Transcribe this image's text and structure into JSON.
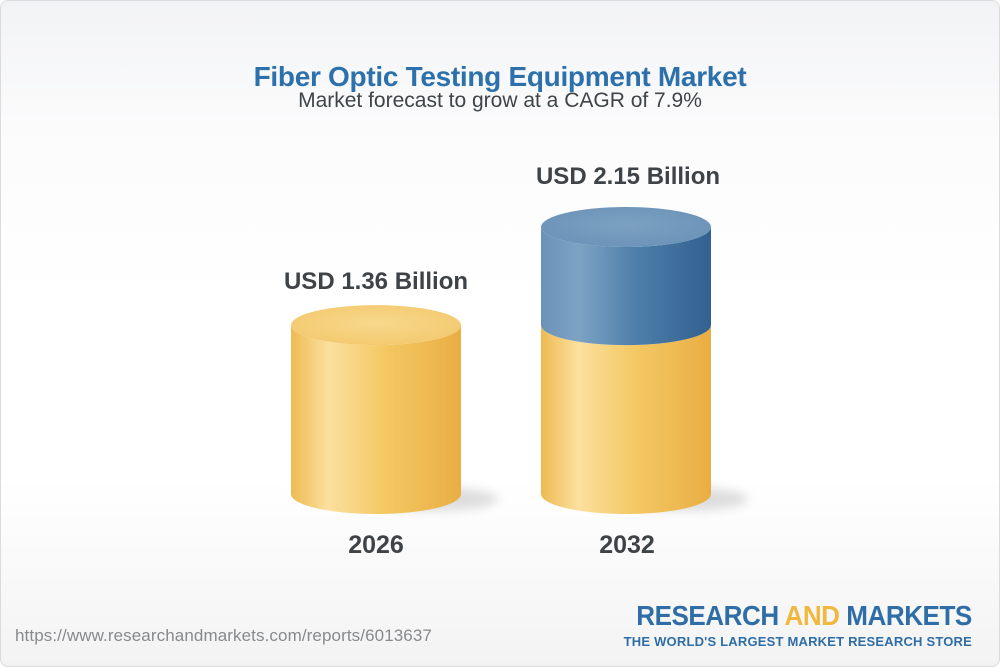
{
  "header": {
    "title": "Fiber Optic Testing Equipment Market",
    "subtitle": "Market forecast to grow at a CAGR of 7.9%"
  },
  "chart_data": {
    "type": "bar",
    "subtype": "3d-cylinder",
    "title": "Fiber Optic Testing Equipment Market",
    "subtitle": "Market forecast to grow at a CAGR of 7.9%",
    "unit": "USD Billion",
    "cagr_percent": 7.9,
    "categories": [
      "2026",
      "2032"
    ],
    "values": [
      1.36,
      2.15
    ],
    "value_labels": [
      "USD 1.36 Billion",
      "USD 2.15 Billion"
    ],
    "ylim": [
      0,
      2.15
    ],
    "grid": false,
    "legend": "none",
    "bars": [
      {
        "category": "2026",
        "total": 1.36,
        "label": "USD 1.36 Billion",
        "segments": [
          {
            "color": "gold",
            "value": 1.36
          }
        ]
      },
      {
        "category": "2032",
        "total": 2.15,
        "label": "USD 2.15 Billion",
        "segments": [
          {
            "color": "gold",
            "value": 1.36
          },
          {
            "color": "blue",
            "value": 0.79
          }
        ]
      }
    ],
    "colors": {
      "gold": "#f2c45f",
      "blue": "#4e7da9",
      "title_blue": "#2c70ac",
      "label_gray": "#3e4347"
    }
  },
  "footer": {
    "url": "https://www.researchandmarkets.com/reports/6013637",
    "logo": {
      "word1": "RESEARCH",
      "word2": "AND",
      "word3": "MARKETS",
      "tagline": "THE WORLD'S LARGEST MARKET RESEARCH STORE",
      "blue": "#2e6da5",
      "gold": "#f0b83f"
    }
  }
}
